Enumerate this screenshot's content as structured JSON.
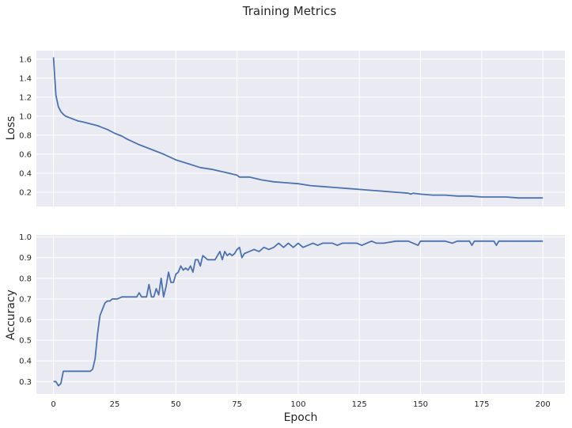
{
  "figure": {
    "title": "Training Metrics"
  },
  "chart_data": [
    {
      "type": "line",
      "ylabel": "Loss",
      "xlabel": "",
      "xlim": [
        -7,
        209
      ],
      "ylim": [
        0.05,
        1.69
      ],
      "xticks": [
        0,
        25,
        50,
        75,
        100,
        125,
        150,
        175,
        200
      ],
      "yticks": [
        0.2,
        0.4,
        0.6,
        0.8,
        1.0,
        1.2,
        1.4,
        1.6
      ],
      "ytick_labels": [
        "0.2",
        "0.4",
        "0.6",
        "0.8",
        "1.0",
        "1.2",
        "1.4",
        "1.6"
      ],
      "show_xtick_labels": false,
      "grid": true,
      "color": "#4c72b0",
      "series": [
        {
          "x": [
            0,
            1,
            2,
            3,
            4,
            5,
            6,
            7,
            8,
            9,
            10,
            12,
            15,
            18,
            20,
            22,
            25,
            28,
            30,
            35,
            40,
            45,
            50,
            55,
            60,
            65,
            70,
            75,
            76,
            80,
            85,
            90,
            95,
            100,
            105,
            110,
            115,
            120,
            125,
            130,
            135,
            140,
            145,
            146,
            147,
            150,
            155,
            160,
            165,
            170,
            175,
            180,
            185,
            190,
            195,
            200
          ],
          "y": [
            1.62,
            1.22,
            1.1,
            1.05,
            1.02,
            1.0,
            0.99,
            0.98,
            0.97,
            0.96,
            0.95,
            0.94,
            0.92,
            0.9,
            0.88,
            0.86,
            0.82,
            0.79,
            0.76,
            0.7,
            0.65,
            0.6,
            0.54,
            0.5,
            0.46,
            0.44,
            0.41,
            0.38,
            0.36,
            0.36,
            0.33,
            0.31,
            0.3,
            0.29,
            0.27,
            0.26,
            0.25,
            0.24,
            0.23,
            0.22,
            0.21,
            0.2,
            0.19,
            0.18,
            0.19,
            0.18,
            0.17,
            0.17,
            0.16,
            0.16,
            0.15,
            0.15,
            0.15,
            0.14,
            0.14,
            0.14
          ]
        }
      ]
    },
    {
      "type": "line",
      "ylabel": "Accuracy",
      "xlabel": "Epoch",
      "xlim": [
        -7,
        209
      ],
      "ylim": [
        0.24,
        1.01
      ],
      "xticks": [
        0,
        25,
        50,
        75,
        100,
        125,
        150,
        175,
        200
      ],
      "xtick_labels": [
        "0",
        "25",
        "50",
        "75",
        "100",
        "125",
        "150",
        "175",
        "200"
      ],
      "yticks": [
        0.3,
        0.4,
        0.5,
        0.6,
        0.7,
        0.8,
        0.9,
        1.0
      ],
      "ytick_labels": [
        "0.3",
        "0.4",
        "0.5",
        "0.6",
        "0.7",
        "0.8",
        "0.9",
        "1.0"
      ],
      "grid": true,
      "color": "#4c72b0",
      "series": [
        {
          "x": [
            0,
            1,
            2,
            3,
            4,
            5,
            10,
            15,
            16,
            17,
            18,
            19,
            20,
            21,
            22,
            23,
            24,
            25,
            26,
            28,
            30,
            34,
            35,
            36,
            38,
            39,
            40,
            41,
            42,
            43,
            44,
            45,
            46,
            47,
            48,
            49,
            50,
            51,
            52,
            53,
            54,
            55,
            56,
            57,
            58,
            59,
            60,
            61,
            62,
            63,
            64,
            65,
            66,
            67,
            68,
            69,
            70,
            71,
            72,
            73,
            74,
            75,
            76,
            77,
            78,
            80,
            82,
            84,
            86,
            88,
            90,
            92,
            94,
            96,
            98,
            100,
            102,
            104,
            106,
            108,
            110,
            112,
            114,
            116,
            118,
            120,
            122,
            124,
            126,
            128,
            130,
            132,
            135,
            140,
            145,
            149,
            150,
            152,
            155,
            160,
            163,
            165,
            168,
            170,
            171,
            172,
            175,
            180,
            181,
            182,
            185,
            190,
            195,
            200
          ],
          "y": [
            0.3,
            0.3,
            0.28,
            0.29,
            0.35,
            0.35,
            0.35,
            0.35,
            0.36,
            0.41,
            0.53,
            0.62,
            0.65,
            0.68,
            0.69,
            0.69,
            0.7,
            0.7,
            0.7,
            0.71,
            0.71,
            0.71,
            0.73,
            0.71,
            0.71,
            0.77,
            0.71,
            0.71,
            0.75,
            0.72,
            0.8,
            0.71,
            0.76,
            0.83,
            0.78,
            0.78,
            0.82,
            0.83,
            0.86,
            0.84,
            0.85,
            0.84,
            0.86,
            0.83,
            0.89,
            0.89,
            0.86,
            0.91,
            0.9,
            0.89,
            0.89,
            0.89,
            0.89,
            0.91,
            0.93,
            0.89,
            0.93,
            0.91,
            0.92,
            0.91,
            0.92,
            0.94,
            0.95,
            0.9,
            0.92,
            0.93,
            0.94,
            0.93,
            0.95,
            0.94,
            0.95,
            0.97,
            0.95,
            0.97,
            0.95,
            0.97,
            0.95,
            0.96,
            0.97,
            0.96,
            0.97,
            0.97,
            0.97,
            0.96,
            0.97,
            0.97,
            0.97,
            0.97,
            0.96,
            0.97,
            0.98,
            0.97,
            0.97,
            0.98,
            0.98,
            0.96,
            0.98,
            0.98,
            0.98,
            0.98,
            0.97,
            0.98,
            0.98,
            0.98,
            0.96,
            0.98,
            0.98,
            0.98,
            0.96,
            0.98,
            0.98,
            0.98,
            0.98,
            0.98
          ]
        }
      ]
    }
  ]
}
